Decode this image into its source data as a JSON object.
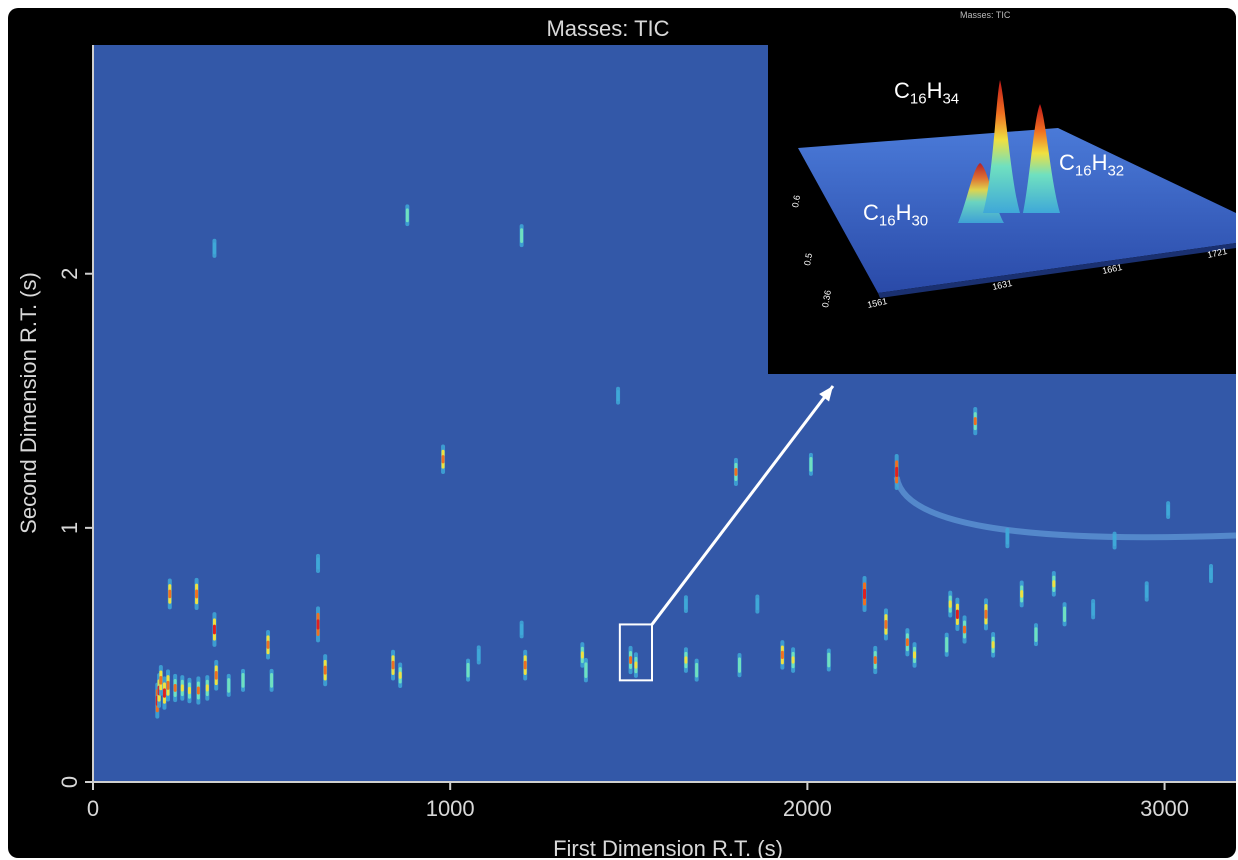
{
  "chart_data": {
    "type": "heatmap",
    "title": "Masses:  TIC",
    "xlabel": "First Dimension R.T. (s)",
    "ylabel": "Second Dimension R.T. (s)",
    "xlim": [
      0,
      3200
    ],
    "ylim": [
      0,
      2.9
    ],
    "x_ticks": [
      0,
      1000,
      2000,
      3000
    ],
    "x_tick_labels": [
      "0",
      "1000",
      "2000",
      "3000"
    ],
    "y_ticks": [
      0,
      1,
      2
    ],
    "y_tick_labels": [
      "0",
      "1",
      "2"
    ],
    "colormap": [
      "#3358a8",
      "#3fa8d8",
      "#6fe0c0",
      "#f0e040",
      "#f07020",
      "#e02020"
    ],
    "background_color": "#3358a8",
    "peaks": [
      {
        "x": 180,
        "y": 0.32,
        "i": 1.0
      },
      {
        "x": 185,
        "y": 0.36,
        "i": 0.95
      },
      {
        "x": 190,
        "y": 0.4,
        "i": 0.8
      },
      {
        "x": 200,
        "y": 0.35,
        "i": 0.9
      },
      {
        "x": 210,
        "y": 0.38,
        "i": 0.85
      },
      {
        "x": 215,
        "y": 0.74,
        "i": 0.8
      },
      {
        "x": 230,
        "y": 0.37,
        "i": 0.7
      },
      {
        "x": 250,
        "y": 0.37,
        "i": 0.6
      },
      {
        "x": 270,
        "y": 0.36,
        "i": 0.6
      },
      {
        "x": 290,
        "y": 0.74,
        "i": 0.85
      },
      {
        "x": 295,
        "y": 0.36,
        "i": 0.7
      },
      {
        "x": 320,
        "y": 0.37,
        "i": 0.6
      },
      {
        "x": 340,
        "y": 0.6,
        "i": 0.95
      },
      {
        "x": 345,
        "y": 0.42,
        "i": 0.8
      },
      {
        "x": 340,
        "y": 2.1,
        "i": 0.35
      },
      {
        "x": 380,
        "y": 0.38,
        "i": 0.5
      },
      {
        "x": 420,
        "y": 0.4,
        "i": 0.5
      },
      {
        "x": 490,
        "y": 0.54,
        "i": 0.75
      },
      {
        "x": 500,
        "y": 0.4,
        "i": 0.5
      },
      {
        "x": 630,
        "y": 0.62,
        "i": 1.0
      },
      {
        "x": 650,
        "y": 0.44,
        "i": 0.85
      },
      {
        "x": 630,
        "y": 0.86,
        "i": 0.35
      },
      {
        "x": 840,
        "y": 0.46,
        "i": 0.8
      },
      {
        "x": 860,
        "y": 0.42,
        "i": 0.6
      },
      {
        "x": 880,
        "y": 2.23,
        "i": 0.45
      },
      {
        "x": 980,
        "y": 1.27,
        "i": 0.75
      },
      {
        "x": 1050,
        "y": 0.44,
        "i": 0.5
      },
      {
        "x": 1200,
        "y": 2.15,
        "i": 0.5
      },
      {
        "x": 1210,
        "y": 0.46,
        "i": 0.8
      },
      {
        "x": 1370,
        "y": 0.5,
        "i": 0.6
      },
      {
        "x": 1380,
        "y": 0.44,
        "i": 0.55
      },
      {
        "x": 1505,
        "y": 0.48,
        "i": 0.7
      },
      {
        "x": 1520,
        "y": 0.46,
        "i": 0.6
      },
      {
        "x": 1470,
        "y": 1.52,
        "i": 0.3
      },
      {
        "x": 1660,
        "y": 0.48,
        "i": 0.6
      },
      {
        "x": 1690,
        "y": 0.44,
        "i": 0.5
      },
      {
        "x": 1800,
        "y": 1.22,
        "i": 0.7
      },
      {
        "x": 1810,
        "y": 0.46,
        "i": 0.55
      },
      {
        "x": 1930,
        "y": 0.5,
        "i": 0.75
      },
      {
        "x": 1960,
        "y": 0.48,
        "i": 0.6
      },
      {
        "x": 2010,
        "y": 1.25,
        "i": 0.5
      },
      {
        "x": 2060,
        "y": 0.48,
        "i": 0.5
      },
      {
        "x": 2160,
        "y": 0.74,
        "i": 1.0
      },
      {
        "x": 2190,
        "y": 0.48,
        "i": 0.7
      },
      {
        "x": 2220,
        "y": 0.62,
        "i": 0.85
      },
      {
        "x": 2250,
        "y": 1.22,
        "i": 1.0
      },
      {
        "x": 2280,
        "y": 0.55,
        "i": 0.7
      },
      {
        "x": 2300,
        "y": 0.5,
        "i": 0.6
      },
      {
        "x": 2390,
        "y": 0.54,
        "i": 0.55
      },
      {
        "x": 2400,
        "y": 0.7,
        "i": 0.65
      },
      {
        "x": 2420,
        "y": 0.66,
        "i": 0.9
      },
      {
        "x": 2440,
        "y": 0.6,
        "i": 0.7
      },
      {
        "x": 2470,
        "y": 1.42,
        "i": 0.7
      },
      {
        "x": 2500,
        "y": 0.66,
        "i": 0.85
      },
      {
        "x": 2520,
        "y": 0.54,
        "i": 0.6
      },
      {
        "x": 2560,
        "y": 0.96,
        "i": 0.4
      },
      {
        "x": 2600,
        "y": 0.74,
        "i": 0.65
      },
      {
        "x": 2640,
        "y": 0.58,
        "i": 0.5
      },
      {
        "x": 2690,
        "y": 0.78,
        "i": 0.6
      },
      {
        "x": 2720,
        "y": 0.66,
        "i": 0.55
      },
      {
        "x": 2800,
        "y": 0.68,
        "i": 0.4
      },
      {
        "x": 2950,
        "y": 0.75,
        "i": 0.4
      },
      {
        "x": 3130,
        "y": 0.82,
        "i": 0.35
      },
      {
        "x": 2860,
        "y": 0.95,
        "i": 0.3
      },
      {
        "x": 3010,
        "y": 1.07,
        "i": 0.3
      },
      {
        "x": 1660,
        "y": 0.7,
        "i": 0.3
      },
      {
        "x": 1200,
        "y": 0.6,
        "i": 0.3
      },
      {
        "x": 1860,
        "y": 0.7,
        "i": 0.35
      },
      {
        "x": 1080,
        "y": 0.5,
        "i": 0.35
      }
    ],
    "tail": {
      "x_start": 2250,
      "y_start": 1.2,
      "x_end": 3200,
      "y_end": 0.97
    },
    "highlight_box": {
      "x1": 1475,
      "x2": 1565,
      "y1": 0.4,
      "y2": 0.62
    },
    "inset": {
      "title": "Masses: TIC",
      "x_tick_labels": [
        "1561",
        "1631",
        "1661",
        "1721"
      ],
      "y_tick_labels": [
        "0.36",
        "0.5",
        "0.6"
      ],
      "annotations": [
        {
          "base": "C",
          "sub1": "16",
          "mid": "H",
          "sub2": "34"
        },
        {
          "base": "C",
          "sub1": "16",
          "mid": "H",
          "sub2": "32"
        },
        {
          "base": "C",
          "sub1": "16",
          "mid": "H",
          "sub2": "30"
        }
      ]
    }
  }
}
